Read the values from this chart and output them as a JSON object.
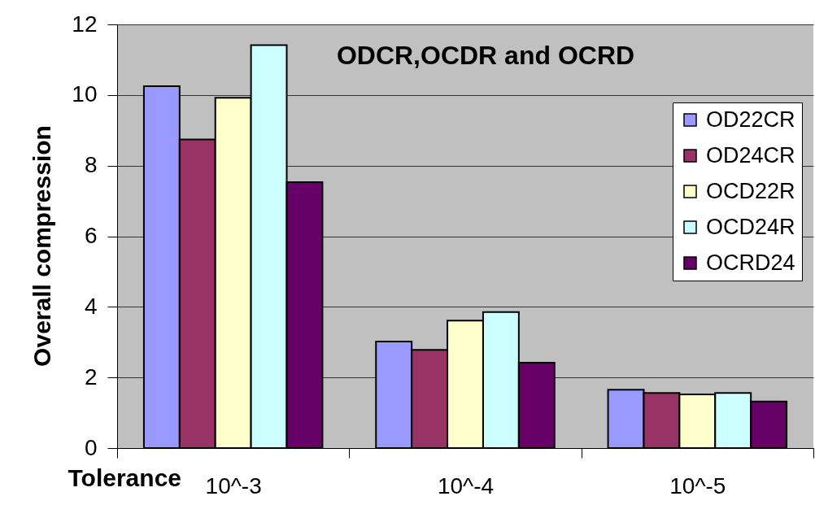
{
  "chart_data": {
    "type": "bar",
    "title": "ODCR,OCDR and OCRD",
    "xlabel": "Tolerance",
    "ylabel": "Overall compression",
    "categories": [
      "10^-3",
      "10^-4",
      "10^-5"
    ],
    "series": [
      {
        "name": "OD22CR",
        "color": "#9999ff",
        "values": [
          10.25,
          3.02,
          1.65
        ]
      },
      {
        "name": "OD24CR",
        "color": "#993366",
        "values": [
          8.74,
          2.78,
          1.56
        ]
      },
      {
        "name": "OCD22R",
        "color": "#ffffcc",
        "values": [
          9.92,
          3.61,
          1.52
        ]
      },
      {
        "name": "OCD24R",
        "color": "#ccffff",
        "values": [
          11.41,
          3.85,
          1.56
        ]
      },
      {
        "name": "OCRD24",
        "color": "#660066",
        "values": [
          7.53,
          2.42,
          1.32
        ]
      }
    ],
    "ylim": [
      0,
      12
    ],
    "yticks": [
      0,
      2,
      4,
      6,
      8,
      10,
      12
    ],
    "grid": "y",
    "legend": "right"
  }
}
